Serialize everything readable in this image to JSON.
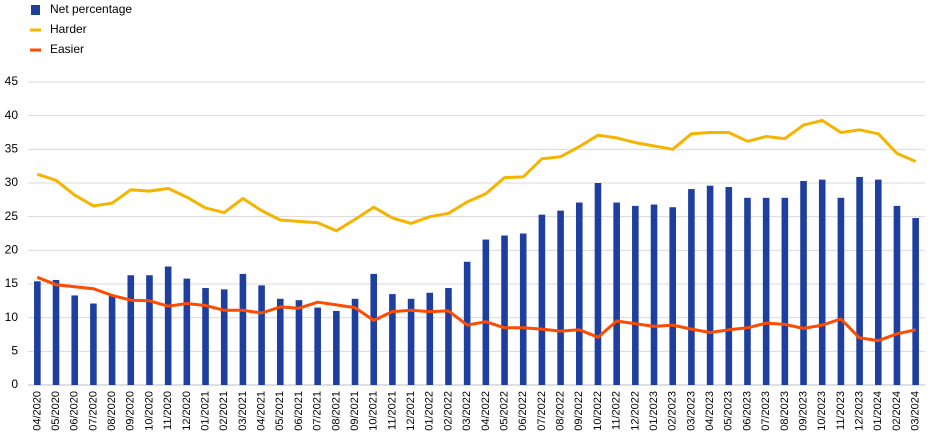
{
  "chart_data": {
    "type": "bar-line",
    "categories": [
      "04/2020",
      "05/2020",
      "06/2020",
      "07/2020",
      "08/2020",
      "09/2020",
      "10/2020",
      "11/2020",
      "12/2020",
      "01/2021",
      "02/2021",
      "03/2021",
      "04/2021",
      "05/2021",
      "06/2021",
      "07/2021",
      "08/2021",
      "09/2021",
      "10/2021",
      "11/2021",
      "12/2021",
      "01/2022",
      "02/2022",
      "03/2022",
      "04/2022",
      "05/2022",
      "06/2022",
      "07/2022",
      "08/2022",
      "09/2022",
      "10/2022",
      "11/2022",
      "12/2022",
      "01/2023",
      "02/2023",
      "03/2023",
      "04/2023",
      "05/2023",
      "06/2023",
      "07/2023",
      "08/2023",
      "09/2023",
      "10/2023",
      "11/2023",
      "12/2023",
      "01/2024",
      "02/2024",
      "03/2024"
    ],
    "series": [
      {
        "name": "Net percentage",
        "kind": "bar",
        "color": "#1f3fa0",
        "values": [
          15.4,
          15.6,
          13.3,
          12.1,
          13.3,
          16.3,
          16.3,
          17.6,
          15.8,
          14.4,
          14.2,
          16.5,
          14.8,
          12.8,
          12.6,
          11.5,
          11.0,
          12.8,
          16.5,
          13.5,
          12.8,
          13.7,
          14.4,
          18.3,
          21.6,
          22.2,
          22.5,
          25.3,
          25.9,
          27.1,
          30.0,
          27.1,
          26.6,
          26.8,
          26.4,
          29.1,
          29.6,
          29.4,
          27.8,
          27.8,
          27.8,
          30.3,
          30.5,
          27.8,
          30.9,
          30.5,
          26.6,
          24.8
        ]
      },
      {
        "name": "Harder",
        "kind": "line",
        "color": "#f5b400",
        "values": [
          31.3,
          30.4,
          28.2,
          26.6,
          27.0,
          29.0,
          28.8,
          29.2,
          27.9,
          26.3,
          25.6,
          27.7,
          25.9,
          24.5,
          24.3,
          24.1,
          22.9,
          24.6,
          26.4,
          24.8,
          24.0,
          25.0,
          25.5,
          27.2,
          28.4,
          30.8,
          30.9,
          33.6,
          33.9,
          35.4,
          37.1,
          36.7,
          36.0,
          35.5,
          35.0,
          37.3,
          37.5,
          37.5,
          36.2,
          36.9,
          36.6,
          38.6,
          39.3,
          37.5,
          37.9,
          37.3,
          34.4,
          33.2
        ]
      },
      {
        "name": "Easier",
        "kind": "line",
        "color": "#ff4b00",
        "values": [
          16.0,
          14.9,
          14.6,
          14.3,
          13.3,
          12.6,
          12.5,
          11.7,
          12.1,
          11.8,
          11.1,
          11.1,
          10.7,
          11.6,
          11.4,
          12.3,
          11.9,
          11.5,
          9.6,
          10.9,
          11.1,
          10.9,
          11.0,
          8.9,
          9.4,
          8.5,
          8.5,
          8.3,
          8.0,
          8.2,
          7.1,
          9.5,
          9.1,
          8.7,
          8.9,
          8.3,
          7.8,
          8.2,
          8.5,
          9.2,
          9.0,
          8.4,
          8.9,
          9.8,
          7.0,
          6.6,
          7.6,
          8.2
        ]
      }
    ],
    "ylim": [
      0,
      45
    ],
    "yticks": [
      0,
      5,
      10,
      15,
      20,
      25,
      30,
      35,
      40,
      45
    ],
    "grid": true
  }
}
